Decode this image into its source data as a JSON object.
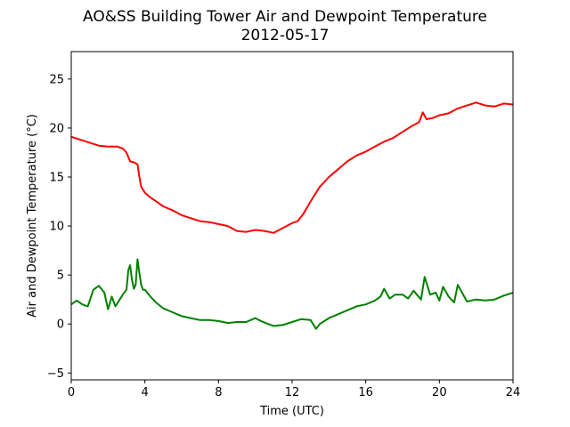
{
  "chart_data": {
    "type": "line",
    "title": "AO&SS Building Tower Air and Dewpoint Temperature",
    "subtitle": "2012-05-17",
    "xlabel": "Time (UTC)",
    "ylabel": "Air and Dewpoint Temperature (°C)",
    "xlim": [
      0,
      24
    ],
    "ylim": [
      -5.7,
      27.8
    ],
    "xticks": [
      0,
      4,
      8,
      12,
      16,
      20,
      24
    ],
    "yticks": [
      -5,
      0,
      5,
      10,
      15,
      20,
      25
    ],
    "grid": false,
    "series": [
      {
        "color": "#ff0000",
        "x": [
          0,
          0.5,
          1,
          1.5,
          2,
          2.5,
          2.8,
          3.0,
          3.2,
          3.4,
          3.6,
          3.7,
          3.8,
          4.0,
          4.3,
          4.7,
          5.0,
          5.5,
          6.0,
          6.5,
          7.0,
          7.5,
          8.0,
          8.5,
          9.0,
          9.5,
          10.0,
          10.5,
          11.0,
          11.5,
          12.0,
          12.3,
          12.6,
          13.0,
          13.5,
          14.0,
          14.5,
          15.0,
          15.5,
          16.0,
          16.5,
          17.0,
          17.5,
          18.0,
          18.5,
          18.9,
          19.1,
          19.3,
          19.6,
          20.0,
          20.5,
          21.0,
          21.5,
          22.0,
          22.5,
          23.0,
          23.5,
          24.0
        ],
        "values": [
          19.1,
          18.8,
          18.5,
          18.2,
          18.1,
          18.1,
          17.9,
          17.5,
          16.6,
          16.5,
          16.3,
          15.0,
          14.0,
          13.4,
          12.9,
          12.4,
          12.0,
          11.6,
          11.1,
          10.8,
          10.5,
          10.4,
          10.2,
          10.0,
          9.5,
          9.4,
          9.6,
          9.5,
          9.3,
          9.8,
          10.3,
          10.5,
          11.2,
          12.5,
          14.0,
          15.0,
          15.8,
          16.6,
          17.2,
          17.6,
          18.1,
          18.6,
          19.0,
          19.6,
          20.2,
          20.6,
          21.6,
          20.9,
          21.0,
          21.3,
          21.5,
          22.0,
          22.3,
          22.6,
          22.3,
          22.2,
          22.5,
          22.4
        ]
      },
      {
        "color": "#008000",
        "x": [
          0,
          0.3,
          0.6,
          0.9,
          1.2,
          1.5,
          1.8,
          2.0,
          2.2,
          2.4,
          2.6,
          2.8,
          3.0,
          3.1,
          3.2,
          3.3,
          3.4,
          3.5,
          3.6,
          3.7,
          3.8,
          3.9,
          4.0,
          4.3,
          4.6,
          5.0,
          5.5,
          6.0,
          6.5,
          7.0,
          7.5,
          8.0,
          8.5,
          9.0,
          9.5,
          10.0,
          10.3,
          10.7,
          11.0,
          11.5,
          12.0,
          12.5,
          13.0,
          13.3,
          13.5,
          14.0,
          14.5,
          15.0,
          15.5,
          16.0,
          16.5,
          16.8,
          17.0,
          17.3,
          17.6,
          18.0,
          18.3,
          18.6,
          19.0,
          19.2,
          19.5,
          19.8,
          20.0,
          20.2,
          20.5,
          20.8,
          21.0,
          21.5,
          22.0,
          22.5,
          23.0,
          23.5,
          24.0
        ],
        "values": [
          2.0,
          2.4,
          2.0,
          1.8,
          3.5,
          3.9,
          3.2,
          1.5,
          2.8,
          1.8,
          2.4,
          3.0,
          3.5,
          5.5,
          6.0,
          4.5,
          3.6,
          4.0,
          6.6,
          5.2,
          4.0,
          3.5,
          3.5,
          2.8,
          2.2,
          1.6,
          1.2,
          0.8,
          0.6,
          0.4,
          0.4,
          0.3,
          0.1,
          0.2,
          0.2,
          0.6,
          0.3,
          0.0,
          -0.2,
          -0.1,
          0.2,
          0.5,
          0.4,
          -0.5,
          0.0,
          0.6,
          1.0,
          1.4,
          1.8,
          2.0,
          2.4,
          2.8,
          3.6,
          2.6,
          3.0,
          3.0,
          2.6,
          3.4,
          2.5,
          4.8,
          3.0,
          3.2,
          2.4,
          3.8,
          2.8,
          2.2,
          4.0,
          2.3,
          2.5,
          2.4,
          2.5,
          2.9,
          3.2
        ]
      }
    ]
  }
}
